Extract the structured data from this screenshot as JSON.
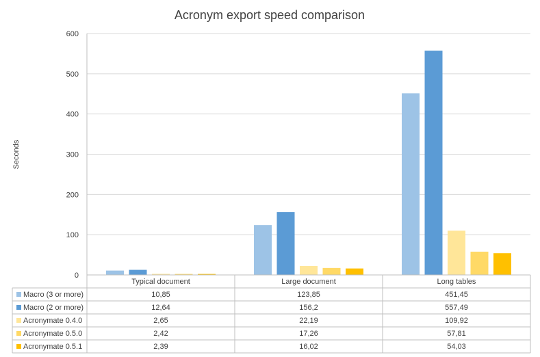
{
  "chart_data": {
    "type": "bar",
    "title": "Acronym export speed comparison",
    "ylabel": "Seconds",
    "xlabel": "",
    "ylim": [
      0,
      600
    ],
    "yticks": [
      0,
      100,
      200,
      300,
      400,
      500,
      600
    ],
    "grid": true,
    "legend": "data-table",
    "categories": [
      "Typical document",
      "Large document",
      "Long tables"
    ],
    "series": [
      {
        "name": "Macro (3 or more)",
        "color": "#9dc3e6",
        "values": [
          10.85,
          123.85,
          451.45
        ],
        "labels": [
          "10,85",
          "123,85",
          "451,45"
        ]
      },
      {
        "name": "Macro (2 or more)",
        "color": "#5b9bd5",
        "values": [
          12.64,
          156.2,
          557.49
        ],
        "labels": [
          "12,64",
          "156,2",
          "557,49"
        ]
      },
      {
        "name": "Acronymate 0.4.0",
        "color": "#ffe699",
        "values": [
          2.65,
          22.19,
          109.92
        ],
        "labels": [
          "2,65",
          "22,19",
          "109,92"
        ]
      },
      {
        "name": "Acronymate 0.5.0",
        "color": "#ffd966",
        "values": [
          2.42,
          17.26,
          57.81
        ],
        "labels": [
          "2,42",
          "17,26",
          "57,81"
        ]
      },
      {
        "name": "Acronymate 0.5.1",
        "color": "#ffc000",
        "values": [
          2.39,
          16.02,
          54.03
        ],
        "labels": [
          "2,39",
          "16,02",
          "54,03"
        ]
      }
    ]
  }
}
